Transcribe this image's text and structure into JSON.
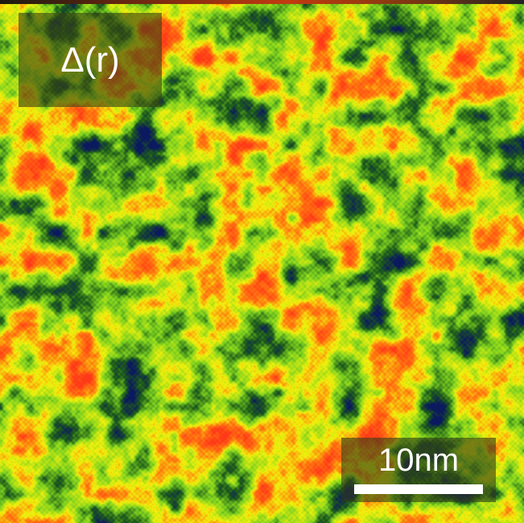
{
  "figure": {
    "panel_label": "Δ(r)",
    "scale_bar_label": "10nm",
    "colormap": [
      "#0b1a5e",
      "#1f5e1a",
      "#7fd21f",
      "#f2f20c",
      "#ff7a10",
      "#ff3a18"
    ]
  }
}
